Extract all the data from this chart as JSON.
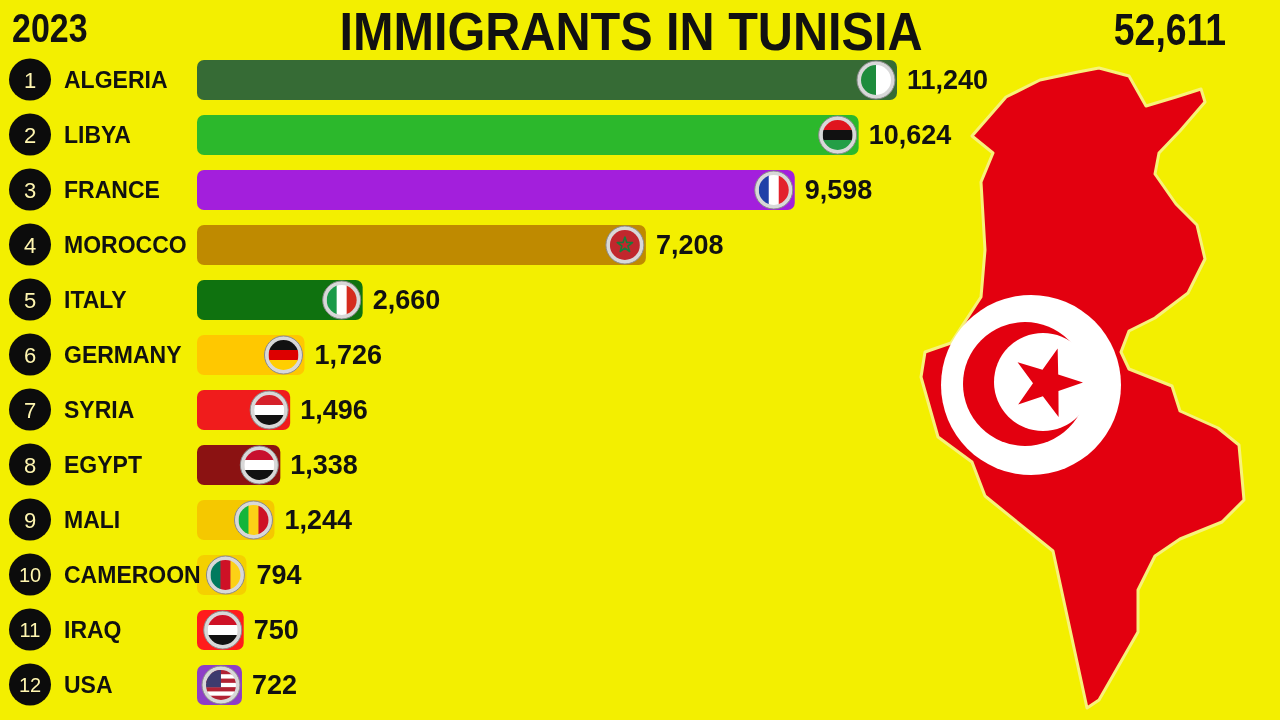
{
  "chart_data": {
    "type": "bar",
    "orientation": "horizontal",
    "title": "IMMIGRANTS IN TUNISIA",
    "subtitle": "2023",
    "categories": [
      "ALGERIA",
      "LIBYA",
      "FRANCE",
      "MOROCCO",
      "ITALY",
      "GERMANY",
      "SYRIA",
      "EGYPT",
      "MALI",
      "CAMEROON",
      "IRAQ",
      "USA"
    ],
    "values": [
      11240,
      10624,
      9598,
      7208,
      2660,
      1726,
      1496,
      1338,
      1244,
      794,
      750,
      722
    ],
    "colors": [
      "#366b35",
      "#2cb82c",
      "#a31fdc",
      "#bf8a00",
      "#0f720f",
      "#ffc800",
      "#f01c1c",
      "#8b1212",
      "#f5c800",
      "#f5d000",
      "#ff1c1c",
      "#8e3ec6"
    ],
    "value_labels": [
      "11,240",
      "10,624",
      "9,598",
      "7,208",
      "2,660",
      "1,726",
      "1,496",
      "1,338",
      "1,244",
      "794",
      "750",
      "722"
    ],
    "tick_labels": "y",
    "annotations": [
      "52,611",
      "1",
      "2",
      "3",
      "4",
      "5",
      "6",
      "7",
      "8",
      "9",
      "10",
      "11",
      "12"
    ]
  }
}
